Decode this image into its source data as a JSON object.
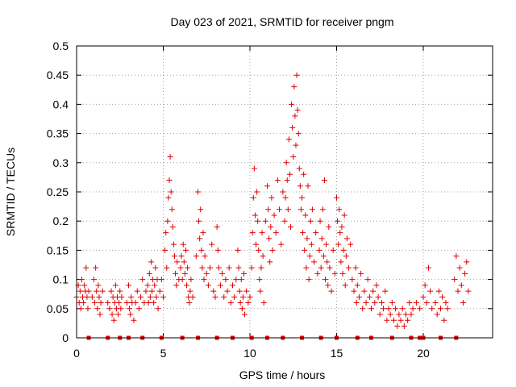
{
  "chart_data": {
    "type": "scatter",
    "title": "Day 023 of 2021, SRMTID for receiver pngm",
    "xlabel": "GPS time / hours",
    "ylabel": "SRMTID / TECUs",
    "xlim": [
      0,
      24
    ],
    "ylim": [
      0,
      0.5
    ],
    "grid": true,
    "marker_color": "#e00000",
    "x_ticks": [
      0,
      5,
      10,
      15,
      20
    ],
    "x_tick_labels": [
      "0",
      "5",
      "10",
      "15",
      "20"
    ],
    "y_ticks": [
      0,
      0.05,
      0.1,
      0.15,
      0.2,
      0.25,
      0.3,
      0.35,
      0.4,
      0.45,
      0.5
    ],
    "y_tick_labels": [
      "0",
      "0.05",
      "0.1",
      "0.15",
      "0.2",
      "0.25",
      "0.3",
      "0.35",
      "0.4",
      "0.45",
      "0.5"
    ],
    "series": [
      {
        "name": "SRMTID",
        "marker": "+",
        "points": [
          [
            0.0,
            0.07
          ],
          [
            0.1,
            0.09
          ],
          [
            0.15,
            0.06
          ],
          [
            0.2,
            0.08
          ],
          [
            0.25,
            0.05
          ],
          [
            0.3,
            0.1
          ],
          [
            0.35,
            0.07
          ],
          [
            0.4,
            0.06
          ],
          [
            0.45,
            0.09
          ],
          [
            0.5,
            0.08
          ],
          [
            0.55,
            0.12
          ],
          [
            0.6,
            0.07
          ],
          [
            0.65,
            0.05
          ],
          [
            0.7,
            0.08
          ],
          [
            0.9,
            0.07
          ],
          [
            1.0,
            0.1
          ],
          [
            1.05,
            0.06
          ],
          [
            1.1,
            0.12
          ],
          [
            1.15,
            0.08
          ],
          [
            1.2,
            0.05
          ],
          [
            1.25,
            0.09
          ],
          [
            1.3,
            0.07
          ],
          [
            1.35,
            0.04
          ],
          [
            1.4,
            0.06
          ],
          [
            1.5,
            0.08
          ],
          [
            1.8,
            0.06
          ],
          [
            1.9,
            0.05
          ],
          [
            2.0,
            0.08
          ],
          [
            2.05,
            0.04
          ],
          [
            2.1,
            0.07
          ],
          [
            2.15,
            0.03
          ],
          [
            2.2,
            0.06
          ],
          [
            2.25,
            0.09
          ],
          [
            2.3,
            0.05
          ],
          [
            2.35,
            0.07
          ],
          [
            2.4,
            0.04
          ],
          [
            2.45,
            0.06
          ],
          [
            2.5,
            0.08
          ],
          [
            2.55,
            0.05
          ],
          [
            2.6,
            0.07
          ],
          [
            2.9,
            0.06
          ],
          [
            3.0,
            0.09
          ],
          [
            3.05,
            0.05
          ],
          [
            3.1,
            0.04
          ],
          [
            3.15,
            0.07
          ],
          [
            3.2,
            0.06
          ],
          [
            3.3,
            0.03
          ],
          [
            3.4,
            0.06
          ],
          [
            3.5,
            0.08
          ],
          [
            3.6,
            0.05
          ],
          [
            3.7,
            0.07
          ],
          [
            3.8,
            0.1
          ],
          [
            3.9,
            0.06
          ],
          [
            4.0,
            0.08
          ],
          [
            4.1,
            0.09
          ],
          [
            4.15,
            0.06
          ],
          [
            4.2,
            0.11
          ],
          [
            4.25,
            0.07
          ],
          [
            4.3,
            0.13
          ],
          [
            4.35,
            0.08
          ],
          [
            4.4,
            0.1
          ],
          [
            4.45,
            0.06
          ],
          [
            4.5,
            0.09
          ],
          [
            4.55,
            0.12
          ],
          [
            4.6,
            0.07
          ],
          [
            4.65,
            0.1
          ],
          [
            4.7,
            0.05
          ],
          [
            4.8,
            0.08
          ],
          [
            4.9,
            0.1
          ],
          [
            5.0,
            0.07
          ],
          [
            5.1,
            0.15
          ],
          [
            5.15,
            0.18
          ],
          [
            5.2,
            0.12
          ],
          [
            5.25,
            0.2
          ],
          [
            5.3,
            0.24
          ],
          [
            5.35,
            0.27
          ],
          [
            5.4,
            0.31
          ],
          [
            5.45,
            0.25
          ],
          [
            5.5,
            0.22
          ],
          [
            5.55,
            0.19
          ],
          [
            5.6,
            0.16
          ],
          [
            5.65,
            0.14
          ],
          [
            5.7,
            0.11
          ],
          [
            5.75,
            0.09
          ],
          [
            5.8,
            0.13
          ],
          [
            5.9,
            0.1
          ],
          [
            6.0,
            0.12
          ],
          [
            6.05,
            0.14
          ],
          [
            6.1,
            0.1
          ],
          [
            6.15,
            0.16
          ],
          [
            6.2,
            0.13
          ],
          [
            6.25,
            0.11
          ],
          [
            6.3,
            0.15
          ],
          [
            6.35,
            0.09
          ],
          [
            6.4,
            0.12
          ],
          [
            6.45,
            0.07
          ],
          [
            6.5,
            0.06
          ],
          [
            6.55,
            0.08
          ],
          [
            6.6,
            0.1
          ],
          [
            6.7,
            0.07
          ],
          [
            6.9,
            0.14
          ],
          [
            7.0,
            0.25
          ],
          [
            7.05,
            0.2
          ],
          [
            7.1,
            0.17
          ],
          [
            7.15,
            0.22
          ],
          [
            7.2,
            0.15
          ],
          [
            7.25,
            0.12
          ],
          [
            7.3,
            0.18
          ],
          [
            7.35,
            0.1
          ],
          [
            7.4,
            0.14
          ],
          [
            7.5,
            0.11
          ],
          [
            7.6,
            0.09
          ],
          [
            7.7,
            0.12
          ],
          [
            7.8,
            0.16
          ],
          [
            7.9,
            0.08
          ],
          [
            8.0,
            0.07
          ],
          [
            8.1,
            0.19
          ],
          [
            8.15,
            0.15
          ],
          [
            8.2,
            0.12
          ],
          [
            8.3,
            0.09
          ],
          [
            8.4,
            0.11
          ],
          [
            8.5,
            0.07
          ],
          [
            8.6,
            0.1
          ],
          [
            8.7,
            0.08
          ],
          [
            8.8,
            0.12
          ],
          [
            8.9,
            0.06
          ],
          [
            9.0,
            0.09
          ],
          [
            9.1,
            0.07
          ],
          [
            9.2,
            0.1
          ],
          [
            9.3,
            0.15
          ],
          [
            9.35,
            0.12
          ],
          [
            9.4,
            0.08
          ],
          [
            9.45,
            0.06
          ],
          [
            9.5,
            0.1
          ],
          [
            9.55,
            0.05
          ],
          [
            9.6,
            0.07
          ],
          [
            9.65,
            0.11
          ],
          [
            9.7,
            0.04
          ],
          [
            9.8,
            0.08
          ],
          [
            9.9,
            0.06
          ],
          [
            10.0,
            0.07
          ],
          [
            10.1,
            0.12
          ],
          [
            10.15,
            0.18
          ],
          [
            10.2,
            0.24
          ],
          [
            10.25,
            0.29
          ],
          [
            10.3,
            0.21
          ],
          [
            10.35,
            0.16
          ],
          [
            10.4,
            0.25
          ],
          [
            10.45,
            0.2
          ],
          [
            10.5,
            0.15
          ],
          [
            10.55,
            0.1
          ],
          [
            10.6,
            0.08
          ],
          [
            10.65,
            0.12
          ],
          [
            10.7,
            0.18
          ],
          [
            10.75,
            0.14
          ],
          [
            10.8,
            0.06
          ],
          [
            10.9,
            0.2
          ],
          [
            11.0,
            0.26
          ],
          [
            11.05,
            0.22
          ],
          [
            11.1,
            0.17
          ],
          [
            11.15,
            0.13
          ],
          [
            11.2,
            0.19
          ],
          [
            11.25,
            0.24
          ],
          [
            11.3,
            0.15
          ],
          [
            11.4,
            0.21
          ],
          [
            11.5,
            0.18
          ],
          [
            11.6,
            0.27
          ],
          [
            11.7,
            0.22
          ],
          [
            11.8,
            0.16
          ],
          [
            11.9,
            0.25
          ],
          [
            12.0,
            0.2
          ],
          [
            12.05,
            0.24
          ],
          [
            12.1,
            0.3
          ],
          [
            12.15,
            0.27
          ],
          [
            12.2,
            0.22
          ],
          [
            12.25,
            0.34
          ],
          [
            12.3,
            0.28
          ],
          [
            12.35,
            0.19
          ],
          [
            12.4,
            0.4
          ],
          [
            12.45,
            0.36
          ],
          [
            12.5,
            0.31
          ],
          [
            12.55,
            0.43
          ],
          [
            12.6,
            0.38
          ],
          [
            12.65,
            0.33
          ],
          [
            12.7,
            0.45
          ],
          [
            12.75,
            0.39
          ],
          [
            12.8,
            0.35
          ],
          [
            12.85,
            0.29
          ],
          [
            12.9,
            0.26
          ],
          [
            12.95,
            0.22
          ],
          [
            13.0,
            0.24
          ],
          [
            13.05,
            0.18
          ],
          [
            13.1,
            0.28
          ],
          [
            13.15,
            0.15
          ],
          [
            13.2,
            0.21
          ],
          [
            13.25,
            0.12
          ],
          [
            13.3,
            0.17
          ],
          [
            13.35,
            0.26
          ],
          [
            13.4,
            0.1
          ],
          [
            13.45,
            0.14
          ],
          [
            13.5,
            0.2
          ],
          [
            13.55,
            0.16
          ],
          [
            13.6,
            0.22
          ],
          [
            13.7,
            0.13
          ],
          [
            13.8,
            0.18
          ],
          [
            13.9,
            0.11
          ],
          [
            14.0,
            0.15
          ],
          [
            14.05,
            0.2
          ],
          [
            14.1,
            0.12
          ],
          [
            14.15,
            0.17
          ],
          [
            14.2,
            0.22
          ],
          [
            14.25,
            0.14
          ],
          [
            14.3,
            0.27
          ],
          [
            14.35,
            0.1
          ],
          [
            14.4,
            0.16
          ],
          [
            14.45,
            0.13
          ],
          [
            14.5,
            0.09
          ],
          [
            14.55,
            0.19
          ],
          [
            14.6,
            0.12
          ],
          [
            14.7,
            0.08
          ],
          [
            14.8,
            0.15
          ],
          [
            14.9,
            0.11
          ],
          [
            15.0,
            0.24
          ],
          [
            15.05,
            0.2
          ],
          [
            15.1,
            0.16
          ],
          [
            15.15,
            0.22
          ],
          [
            15.2,
            0.18
          ],
          [
            15.25,
            0.13
          ],
          [
            15.3,
            0.19
          ],
          [
            15.35,
            0.11
          ],
          [
            15.4,
            0.15
          ],
          [
            15.45,
            0.21
          ],
          [
            15.5,
            0.09
          ],
          [
            15.55,
            0.14
          ],
          [
            15.6,
            0.17
          ],
          [
            15.7,
            0.12
          ],
          [
            15.8,
            0.16
          ],
          [
            15.9,
            0.1
          ],
          [
            16.0,
            0.08
          ],
          [
            16.1,
            0.12
          ],
          [
            16.15,
            0.06
          ],
          [
            16.2,
            0.09
          ],
          [
            16.3,
            0.07
          ],
          [
            16.4,
            0.11
          ],
          [
            16.5,
            0.05
          ],
          [
            16.6,
            0.08
          ],
          [
            16.7,
            0.06
          ],
          [
            16.8,
            0.1
          ],
          [
            16.9,
            0.07
          ],
          [
            17.0,
            0.05
          ],
          [
            17.1,
            0.08
          ],
          [
            17.2,
            0.06
          ],
          [
            17.3,
            0.09
          ],
          [
            17.4,
            0.07
          ],
          [
            17.5,
            0.04
          ],
          [
            17.6,
            0.06
          ],
          [
            17.7,
            0.05
          ],
          [
            17.8,
            0.08
          ],
          [
            17.9,
            0.03
          ],
          [
            18.0,
            0.05
          ],
          [
            18.1,
            0.04
          ],
          [
            18.2,
            0.06
          ],
          [
            18.3,
            0.03
          ],
          [
            18.4,
            0.05
          ],
          [
            18.5,
            0.02
          ],
          [
            18.6,
            0.04
          ],
          [
            18.7,
            0.03
          ],
          [
            18.8,
            0.05
          ],
          [
            18.9,
            0.02
          ],
          [
            19.0,
            0.04
          ],
          [
            19.1,
            0.03
          ],
          [
            19.2,
            0.06
          ],
          [
            19.3,
            0.04
          ],
          [
            19.4,
            0.05
          ],
          [
            19.6,
            0.06
          ],
          [
            19.8,
            0.05
          ],
          [
            20.0,
            0.07
          ],
          [
            20.1,
            0.09
          ],
          [
            20.2,
            0.06
          ],
          [
            20.3,
            0.12
          ],
          [
            20.4,
            0.08
          ],
          [
            20.5,
            0.05
          ],
          [
            20.7,
            0.06
          ],
          [
            20.8,
            0.04
          ],
          [
            20.9,
            0.08
          ],
          [
            21.0,
            0.05
          ],
          [
            21.1,
            0.07
          ],
          [
            21.2,
            0.03
          ],
          [
            21.3,
            0.06
          ],
          [
            21.4,
            0.05
          ],
          [
            21.8,
            0.1
          ],
          [
            21.9,
            0.14
          ],
          [
            22.0,
            0.08
          ],
          [
            22.1,
            0.12
          ],
          [
            22.2,
            0.09
          ],
          [
            22.3,
            0.06
          ],
          [
            22.4,
            0.11
          ],
          [
            22.5,
            0.13
          ],
          [
            22.6,
            0.08
          ]
        ]
      }
    ],
    "baseline_markers": {
      "y": 0,
      "x": [
        0.7,
        1.8,
        2.5,
        3.0,
        3.8,
        4.9,
        6.1,
        7.0,
        8.1,
        9.0,
        10.1,
        11.0,
        11.9,
        13.0,
        14.1,
        15.0,
        16.2,
        17.0,
        18.2,
        19.3,
        19.8,
        20.0,
        21.0,
        21.9
      ]
    }
  }
}
